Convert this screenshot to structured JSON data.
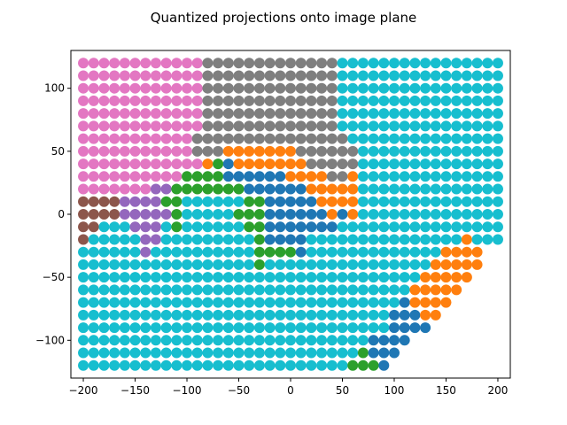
{
  "chart_data": {
    "type": "scatter",
    "title": "Quantized projections onto image plane",
    "xlabel": "",
    "ylabel": "",
    "xlim": [
      -212,
      212
    ],
    "ylim": [
      -130,
      130
    ],
    "xticks": [
      -200,
      -150,
      -100,
      -50,
      0,
      50,
      100,
      150,
      200
    ],
    "yticks": [
      -100,
      -50,
      0,
      50,
      100
    ],
    "xtick_labels": [
      "−200",
      "−150",
      "−100",
      "−50",
      "0",
      "50",
      "100",
      "150",
      "200"
    ],
    "ytick_labels": [
      "−100",
      "−50",
      "0",
      "50",
      "100"
    ],
    "grid": false,
    "legend": "none",
    "colors": {
      "cyan": "#17becf",
      "gray": "#7f7f7f",
      "pink": "#e377c2",
      "brown": "#8c564b",
      "purple": "#9467bd",
      "green": "#2ca02c",
      "blue": "#1f77b4",
      "orange": "#ff7f0e"
    },
    "grid_points": {
      "x_start": -200,
      "x_step": 10,
      "x_count": 41,
      "y_values": [
        120,
        110,
        100,
        90,
        80,
        70,
        60,
        50,
        40,
        30,
        20,
        10,
        0,
        -10,
        -20,
        -30,
        -40,
        -50,
        -60,
        -70,
        -80,
        -90,
        -100,
        -110,
        -120
      ],
      "x_max_per_row": [
        200,
        200,
        200,
        200,
        200,
        200,
        200,
        200,
        200,
        200,
        200,
        200,
        200,
        200,
        200,
        180,
        180,
        170,
        160,
        150,
        140,
        130,
        110,
        100,
        90
      ]
    },
    "colored_segments": [
      [
        120,
        -200,
        -90,
        "pink"
      ],
      [
        120,
        -80,
        40,
        "gray"
      ],
      [
        110,
        -200,
        -90,
        "pink"
      ],
      [
        110,
        -80,
        40,
        "gray"
      ],
      [
        100,
        -200,
        -90,
        "pink"
      ],
      [
        100,
        -80,
        40,
        "gray"
      ],
      [
        90,
        -200,
        -90,
        "pink"
      ],
      [
        90,
        -80,
        40,
        "gray"
      ],
      [
        80,
        -200,
        -90,
        "pink"
      ],
      [
        80,
        -80,
        40,
        "gray"
      ],
      [
        70,
        -200,
        -90,
        "pink"
      ],
      [
        70,
        -80,
        40,
        "gray"
      ],
      [
        60,
        -200,
        -100,
        "pink"
      ],
      [
        60,
        -90,
        50,
        "gray"
      ],
      [
        50,
        -200,
        -100,
        "pink"
      ],
      [
        50,
        -90,
        -70,
        "gray"
      ],
      [
        50,
        -60,
        0,
        "orange"
      ],
      [
        50,
        10,
        60,
        "gray"
      ],
      [
        40,
        -200,
        -90,
        "pink"
      ],
      [
        40,
        -80,
        -80,
        "orange"
      ],
      [
        40,
        -70,
        -70,
        "green"
      ],
      [
        40,
        -60,
        -60,
        "blue"
      ],
      [
        40,
        -50,
        10,
        "orange"
      ],
      [
        40,
        20,
        60,
        "gray"
      ],
      [
        30,
        -200,
        -110,
        "pink"
      ],
      [
        30,
        -100,
        -70,
        "green"
      ],
      [
        30,
        -60,
        -10,
        "blue"
      ],
      [
        30,
        0,
        30,
        "orange"
      ],
      [
        30,
        40,
        50,
        "gray"
      ],
      [
        30,
        60,
        60,
        "orange"
      ],
      [
        20,
        -200,
        -140,
        "pink"
      ],
      [
        20,
        -130,
        -120,
        "purple"
      ],
      [
        20,
        -110,
        -50,
        "green"
      ],
      [
        20,
        -40,
        10,
        "blue"
      ],
      [
        20,
        20,
        60,
        "orange"
      ],
      [
        10,
        -200,
        -170,
        "brown"
      ],
      [
        10,
        -160,
        -130,
        "purple"
      ],
      [
        10,
        -120,
        -110,
        "green"
      ],
      [
        10,
        -40,
        -30,
        "green"
      ],
      [
        10,
        -20,
        20,
        "blue"
      ],
      [
        10,
        30,
        60,
        "orange"
      ],
      [
        0,
        -200,
        -170,
        "brown"
      ],
      [
        0,
        -160,
        -120,
        "purple"
      ],
      [
        0,
        -110,
        -110,
        "green"
      ],
      [
        0,
        -50,
        -30,
        "green"
      ],
      [
        0,
        -20,
        30,
        "blue"
      ],
      [
        0,
        40,
        40,
        "orange"
      ],
      [
        0,
        50,
        50,
        "blue"
      ],
      [
        0,
        60,
        60,
        "orange"
      ],
      [
        -10,
        -200,
        -190,
        "brown"
      ],
      [
        -10,
        -150,
        -130,
        "purple"
      ],
      [
        -10,
        -110,
        -110,
        "green"
      ],
      [
        -10,
        -40,
        -30,
        "green"
      ],
      [
        -10,
        -20,
        40,
        "blue"
      ],
      [
        -20,
        -200,
        -200,
        "brown"
      ],
      [
        -20,
        -140,
        -130,
        "purple"
      ],
      [
        -20,
        -30,
        -30,
        "green"
      ],
      [
        -20,
        -20,
        10,
        "blue"
      ],
      [
        -20,
        170,
        170,
        "orange"
      ],
      [
        -30,
        -140,
        -140,
        "purple"
      ],
      [
        -30,
        -30,
        0,
        "green"
      ],
      [
        -30,
        10,
        10,
        "blue"
      ],
      [
        -30,
        150,
        180,
        "orange"
      ],
      [
        -40,
        -30,
        -30,
        "green"
      ],
      [
        -40,
        140,
        180,
        "orange"
      ],
      [
        -50,
        130,
        170,
        "orange"
      ],
      [
        -60,
        120,
        160,
        "orange"
      ],
      [
        -70,
        110,
        110,
        "blue"
      ],
      [
        -70,
        120,
        150,
        "orange"
      ],
      [
        -80,
        100,
        120,
        "blue"
      ],
      [
        -80,
        130,
        140,
        "orange"
      ],
      [
        -90,
        100,
        130,
        "blue"
      ],
      [
        -100,
        80,
        130,
        "blue"
      ],
      [
        -110,
        70,
        70,
        "green"
      ],
      [
        -110,
        80,
        100,
        "blue"
      ],
      [
        -120,
        60,
        80,
        "green"
      ],
      [
        -120,
        90,
        90,
        "blue"
      ]
    ]
  }
}
